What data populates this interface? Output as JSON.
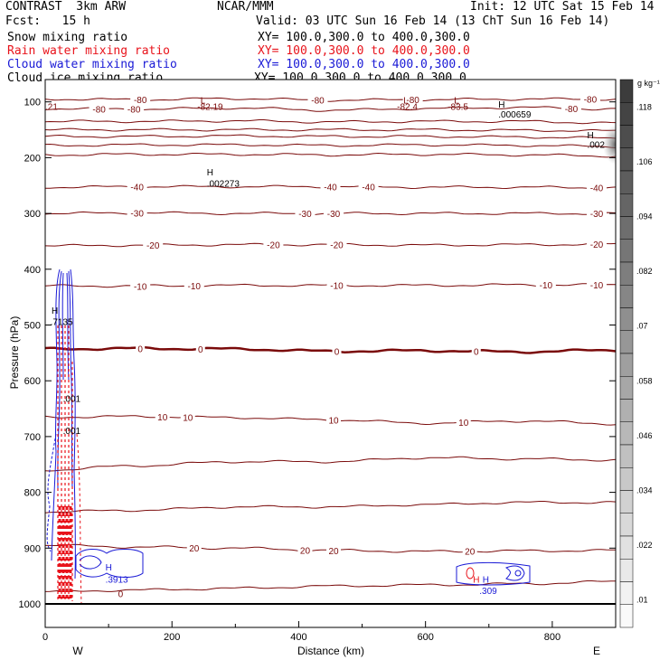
{
  "header": {
    "model": "CONTRAST  3km ARW",
    "center": "NCAR/MMM",
    "init": "Init: 12 UTC Sat 15 Feb 14",
    "fcst": "Fcst:   15 h",
    "valid": "Valid: 03 UTC Sun 16 Feb 14 (13 ChT Sun 16 Feb 14)",
    "fields": [
      {
        "name": "Snow mixing ratio",
        "xy": "XY= 100.0,300.0 to 400.0,300.0",
        "color": "#000000"
      },
      {
        "name": "Rain water mixing ratio",
        "xy": "XY= 100.0,300.0 to 400.0,300.0",
        "color": "#e8131b"
      },
      {
        "name": "Cloud water mixing ratio",
        "xy": "XY= 100.0,300.0 to 400.0,300.0",
        "color": "#1a1ad6"
      },
      {
        "name": "Cloud ice mixing ratio",
        "xy": "XY= 100.0,300.0 to 400.0,300.0",
        "color": "#000000"
      }
    ]
  },
  "chart_data": {
    "type": "line",
    "xlabel": "Distance (km)",
    "ylabel": "Pressure (hPa)",
    "xlim": [
      0,
      900
    ],
    "ylim": [
      1000,
      60
    ],
    "xticks": [
      0,
      200,
      400,
      600,
      800
    ],
    "yticks": [
      100,
      200,
      300,
      400,
      500,
      600,
      700,
      800,
      900,
      1000
    ],
    "west_label": "W",
    "east_label": "E",
    "colorbar": {
      "unit": "g kg⁻¹",
      "labels": [
        ".01",
        ".022",
        ".034",
        ".046",
        ".058",
        ".07",
        ".082",
        ".094",
        ".106",
        ".118"
      ]
    },
    "temperature_contours": [
      {
        "label": "-80",
        "p": [
          95,
          96,
          94,
          97,
          96,
          95,
          95
        ],
        "bold": false,
        "labels_at": [
          {
            "x": 150,
            "t": "-80"
          },
          {
            "x": 430,
            "t": "-80"
          },
          {
            "x": 580,
            "t": "-80"
          },
          {
            "x": 860,
            "t": "-80"
          }
        ]
      },
      {
        "label": "-80",
        "p": [
          112,
          113,
          111,
          115,
          112,
          110,
          113
        ],
        "bold": false,
        "labels_at": [
          {
            "x": 85,
            "t": "-80"
          },
          {
            "x": 140,
            "t": "-80"
          },
          {
            "x": 830,
            "t": "-80"
          }
        ]
      },
      {
        "label": "",
        "p": [
          135,
          135,
          134,
          136,
          135,
          135,
          138
        ],
        "bold": false,
        "labels_at": []
      },
      {
        "label": "",
        "p": [
          150,
          150,
          150,
          150,
          150,
          151,
          152
        ],
        "bold": false,
        "labels_at": []
      },
      {
        "label": "",
        "p": [
          162,
          162,
          161,
          162,
          162,
          163,
          165
        ],
        "bold": false,
        "labels_at": []
      },
      {
        "label": "",
        "p": [
          178,
          177,
          177,
          178,
          177,
          178,
          180
        ],
        "bold": false,
        "labels_at": []
      },
      {
        "label": "",
        "p": [
          195,
          194,
          194,
          195,
          194,
          195,
          197
        ],
        "bold": false,
        "labels_at": []
      },
      {
        "label": "-40",
        "p": [
          253,
          252,
          252,
          252,
          253,
          253,
          254
        ],
        "bold": false,
        "labels_at": [
          {
            "x": 145,
            "t": "-40"
          },
          {
            "x": 450,
            "t": "-40"
          },
          {
            "x": 510,
            "t": "-40"
          },
          {
            "x": 870,
            "t": "-40"
          }
        ]
      },
      {
        "label": "-30",
        "p": [
          300,
          299,
          300,
          300,
          300,
          300,
          300
        ],
        "bold": false,
        "labels_at": [
          {
            "x": 145,
            "t": "-30"
          },
          {
            "x": 410,
            "t": "-30"
          },
          {
            "x": 455,
            "t": "-30"
          },
          {
            "x": 870,
            "t": "-30"
          }
        ]
      },
      {
        "label": "-20",
        "p": [
          358,
          357,
          356,
          356,
          357,
          356,
          355
        ],
        "bold": false,
        "labels_at": [
          {
            "x": 170,
            "t": "-20"
          },
          {
            "x": 360,
            "t": "-20"
          },
          {
            "x": 460,
            "t": "-20"
          },
          {
            "x": 870,
            "t": "-20"
          }
        ]
      },
      {
        "label": "-10",
        "p": [
          430,
          430,
          429,
          429,
          429,
          428,
          428
        ],
        "bold": false,
        "labels_at": [
          {
            "x": 150,
            "t": "-10"
          },
          {
            "x": 235,
            "t": "-10"
          },
          {
            "x": 460,
            "t": "-10"
          },
          {
            "x": 790,
            "t": "-10"
          },
          {
            "x": 870,
            "t": "-10"
          }
        ]
      },
      {
        "label": "0",
        "p": [
          543,
          542,
          543,
          547,
          546,
          548,
          545
        ],
        "bold": true,
        "labels_at": [
          {
            "x": 150,
            "t": "0"
          },
          {
            "x": 245,
            "t": "0"
          },
          {
            "x": 460,
            "t": "0"
          },
          {
            "x": 680,
            "t": "0"
          }
        ]
      },
      {
        "label": "10",
        "p": [
          665,
          664,
          666,
          670,
          676,
          672,
          677
        ],
        "bold": false,
        "labels_at": [
          {
            "x": 185,
            "t": "10"
          },
          {
            "x": 225,
            "t": "10"
          },
          {
            "x": 455,
            "t": "10"
          },
          {
            "x": 660,
            "t": "10"
          }
        ]
      },
      {
        "label": "",
        "p": [
          760,
          752,
          745,
          745,
          738,
          740,
          742
        ],
        "bold": false,
        "labels_at": []
      },
      {
        "label": "",
        "p": [
          835,
          832,
          826,
          826,
          822,
          818,
          818
        ],
        "bold": false,
        "labels_at": []
      },
      {
        "label": "20",
        "p": [
          895,
          898,
          900,
          904,
          906,
          905,
          904
        ],
        "bold": false,
        "labels_at": [
          {
            "x": 235,
            "t": "20"
          },
          {
            "x": 410,
            "t": "20"
          },
          {
            "x": 455,
            "t": "20"
          },
          {
            "x": 670,
            "t": "20"
          }
        ]
      },
      {
        "label": "",
        "p": [
          978,
          975,
          972,
          968,
          966,
          964,
          960
        ],
        "bold": false,
        "labels_at": []
      }
    ],
    "point_labels": [
      {
        "x": 245,
        "p": 103,
        "t": "L",
        "color": "#7a0a0a"
      },
      {
        "x": 240,
        "p": 114,
        "t": "-82.19",
        "color": "#7a0a0a"
      },
      {
        "x": 0,
        "p": 114,
        "t": ".21",
        "color": "#7a0a0a"
      },
      {
        "x": 565,
        "p": 103,
        "t": "L",
        "color": "#7a0a0a"
      },
      {
        "x": 555,
        "p": 114,
        "t": "-82.4",
        "color": "#7a0a0a"
      },
      {
        "x": 645,
        "p": 103,
        "t": "L",
        "color": "#7a0a0a"
      },
      {
        "x": 635,
        "p": 114,
        "t": "-83.5",
        "color": "#7a0a0a"
      },
      {
        "x": 715,
        "p": 110,
        "t": "H",
        "color": "#000000"
      },
      {
        "x": 715,
        "p": 128,
        "t": ".000659",
        "color": "#000000"
      },
      {
        "x": 855,
        "p": 165,
        "t": "H",
        "color": "#000000"
      },
      {
        "x": 855,
        "p": 182,
        "t": ".002",
        "color": "#000000"
      },
      {
        "x": 255,
        "p": 232,
        "t": "H",
        "color": "#000000"
      },
      {
        "x": 255,
        "p": 252,
        "t": ".002273",
        "color": "#000000"
      },
      {
        "x": 10,
        "p": 480,
        "t": "H",
        "color": "#000000"
      },
      {
        "x": 8,
        "p": 500,
        "t": ".7135",
        "color": "#000000"
      },
      {
        "x": 28,
        "p": 638,
        "t": ".001",
        "color": "#000000"
      },
      {
        "x": 28,
        "p": 695,
        "t": ".001",
        "color": "#000000"
      },
      {
        "x": 95,
        "p": 940,
        "t": "H",
        "color": "#1a1ad6"
      },
      {
        "x": 95,
        "p": 962,
        "t": ".3913",
        "color": "#1a1ad6"
      },
      {
        "x": 115,
        "p": 988,
        "t": "0",
        "color": "#7a0a0a"
      },
      {
        "x": 675,
        "p": 962,
        "t": "H",
        "color": "#e8131b"
      },
      {
        "x": 690,
        "p": 962,
        "t": "H",
        "color": "#1a1ad6"
      },
      {
        "x": 685,
        "p": 982,
        "t": ".309",
        "color": "#1a1ad6"
      }
    ]
  }
}
